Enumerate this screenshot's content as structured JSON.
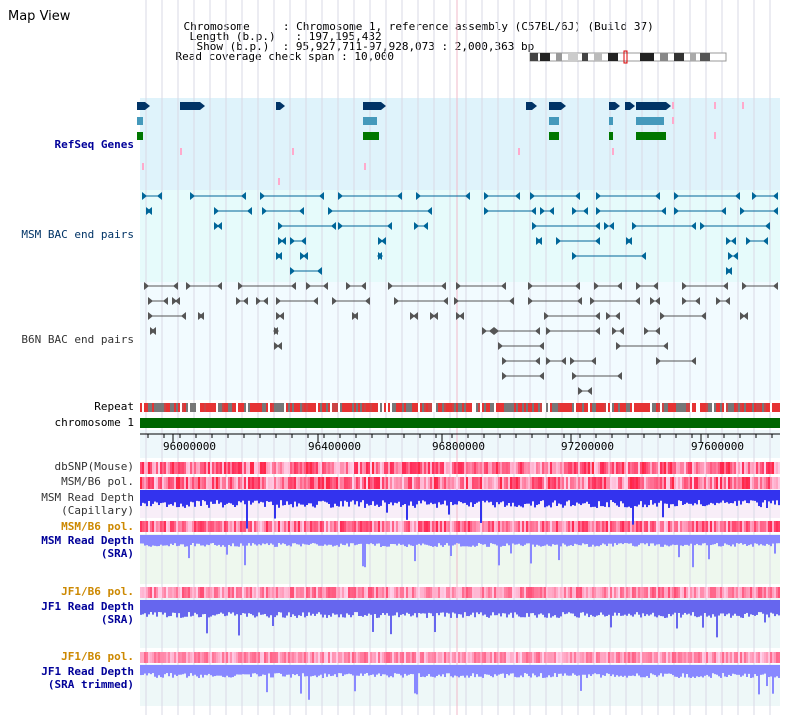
{
  "page": {
    "title": "Map View"
  },
  "header": {
    "chromosome_key": "Chromosome     ",
    "chromosome_val": ": Chromosome 1, reference assembly (C57BL/6J) (Build 37)",
    "length_key": "Length (b.p.)",
    "length_val": ": 197,195,432",
    "show_key": "Show (b.p.)",
    "show_val": ": 95,927,711-97,928,073 : 2,000,363 bp",
    "span_key": "Read coverage check span",
    "span_val": ": 10,000"
  },
  "tracks": {
    "refseq": "RefSeq Genes",
    "msm_bac": "MSM BAC end pairs",
    "b6n_bac": "B6N BAC end pairs",
    "repeat": "Repeat",
    "chromosome": "chromosome 1",
    "dbsnp": "dbSNP(Mouse)",
    "msm_b6_pol": "MSM/B6 pol.",
    "msm_read_depth_cap_1": "MSM Read Depth",
    "msm_read_depth_cap_2": "(Capillary)",
    "msm_b6_pol_2": "MSM/B6 pol.",
    "msm_read_depth_sra_1": "MSM Read Depth",
    "msm_read_depth_sra_2": "(SRA)",
    "jf1_b6_pol": "JF1/B6 pol.",
    "jf1_read_depth_sra_1": "JF1 Read Depth",
    "jf1_read_depth_sra_2": "(SRA)",
    "jf1_b6_pol_2": "JF1/B6 pol.",
    "jf1_read_depth_trim_1": "JF1 Read Depth",
    "jf1_read_depth_trim_2": "(SRA trimmed)"
  },
  "axis": {
    "ticks": [
      "96000000",
      "96400000",
      "96800000",
      "97200000",
      "97600000"
    ]
  },
  "colors": {
    "refseq_bg": "#dff3fb",
    "msm_bac_bg": "#e6fbfb",
    "b6n_bac_bg": "#f2fbff",
    "chromosome": "#006600",
    "pol_red": "#ee3333",
    "depth_blue": "#3333ee",
    "depth_light": "#8888ff",
    "msm_bac_line": "#006699",
    "b6n_bac_line": "#555555"
  }
}
